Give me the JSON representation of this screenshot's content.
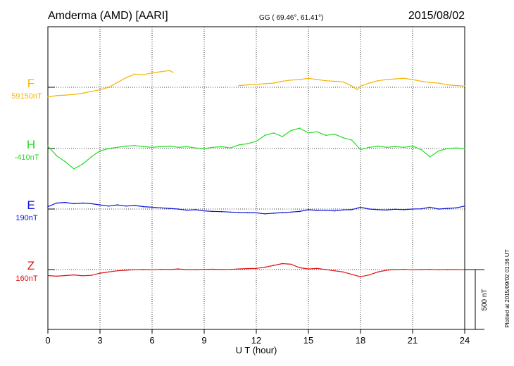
{
  "header": {
    "station": "Amderma (AMD)  [AARI]",
    "coords": "GG ( 69.46°,  61.41°)",
    "date": "2015/08/02"
  },
  "side_note": "Plotted at 2015/09/02 01:36 UT",
  "scale_bar": {
    "label": "500 nT",
    "value_nT": 500
  },
  "chart_data": {
    "type": "line",
    "title": "",
    "xlabel": "U T (hour)",
    "ylabel": "",
    "xlim": [
      0,
      24
    ],
    "xticks": [
      0,
      3,
      6,
      9,
      12,
      15,
      18,
      21,
      24
    ],
    "grid": true,
    "y_unit": "nT",
    "series": [
      {
        "name": "F",
        "baseline_label": "59150nT",
        "baseline_nT": 59150,
        "color": "#f5b400",
        "x": [
          0,
          0.5,
          1,
          1.5,
          2,
          2.5,
          3,
          3.5,
          4,
          4.5,
          5,
          5.5,
          6,
          6.5,
          7,
          7.2,
          null,
          11,
          11.5,
          12,
          12.5,
          13,
          13.5,
          14,
          14.5,
          15,
          15.5,
          16,
          16.5,
          17,
          17.5,
          17.8,
          18,
          18.5,
          19,
          19.5,
          20,
          20.5,
          21,
          21.5,
          22,
          22.5,
          23,
          23.5,
          24
        ],
        "y": [
          59070,
          59080,
          59085,
          59090,
          59100,
          59115,
          59130,
          59150,
          59190,
          59230,
          59260,
          59255,
          59270,
          59280,
          59290,
          59275,
          null,
          59165,
          59170,
          59175,
          59180,
          59185,
          59200,
          59210,
          59215,
          59225,
          59215,
          59205,
          59200,
          59195,
          59160,
          59130,
          59160,
          59185,
          59205,
          59215,
          59220,
          59225,
          59215,
          59200,
          59190,
          59185,
          59170,
          59165,
          59160
        ]
      },
      {
        "name": "H",
        "baseline_label": "-410nT",
        "baseline_nT": -410,
        "color": "#22dd22",
        "x": [
          0,
          0.5,
          1,
          1.5,
          2,
          2.5,
          3,
          3.5,
          4,
          4.5,
          5,
          5.5,
          6,
          6.5,
          7,
          7.5,
          8,
          8.5,
          9,
          9.5,
          10,
          10.5,
          11,
          11.5,
          12,
          12.5,
          13,
          13.5,
          14,
          14.5,
          15,
          15.5,
          16,
          16.5,
          17,
          17.5,
          18,
          18.5,
          19,
          19.5,
          20,
          20.5,
          21,
          21.5,
          22,
          22.5,
          23,
          23.5,
          24
        ],
        "y": [
          -390,
          -470,
          -520,
          -580,
          -540,
          -480,
          -430,
          -410,
          -400,
          -390,
          -385,
          -395,
          -400,
          -395,
          -390,
          -400,
          -395,
          -405,
          -410,
          -400,
          -395,
          -405,
          -380,
          -370,
          -350,
          -300,
          -280,
          -310,
          -260,
          -240,
          -280,
          -270,
          -300,
          -290,
          -320,
          -340,
          -420,
          -400,
          -390,
          -400,
          -395,
          -400,
          -390,
          -420,
          -480,
          -430,
          -410,
          -405,
          -410
        ]
      },
      {
        "name": "E",
        "baseline_label": "190nT",
        "baseline_nT": 190,
        "color": "#0a14d8",
        "x": [
          0,
          0.5,
          1,
          1.5,
          2,
          2.5,
          3,
          3.5,
          4,
          4.5,
          5,
          5.5,
          6,
          6.5,
          7,
          7.5,
          8,
          8.5,
          9,
          9.5,
          10,
          10.5,
          11,
          11.5,
          12,
          12.5,
          13,
          13.5,
          14,
          14.5,
          15,
          15.5,
          16,
          16.5,
          17,
          17.5,
          18,
          18.5,
          19,
          19.5,
          20,
          20.5,
          21,
          21.5,
          22,
          22.5,
          23,
          23.5,
          24
        ],
        "y": [
          210,
          240,
          245,
          235,
          240,
          235,
          225,
          215,
          225,
          215,
          220,
          210,
          205,
          200,
          195,
          190,
          180,
          185,
          175,
          170,
          168,
          165,
          162,
          160,
          158,
          150,
          155,
          160,
          165,
          170,
          185,
          178,
          180,
          175,
          183,
          185,
          205,
          190,
          185,
          182,
          188,
          185,
          190,
          192,
          205,
          190,
          195,
          200,
          215
        ]
      },
      {
        "name": "Z",
        "baseline_label": "160nT",
        "baseline_nT": 160,
        "color": "#e01010",
        "x": [
          0,
          0.5,
          1,
          1.5,
          2,
          2.5,
          3,
          3.5,
          4,
          4.5,
          5,
          5.5,
          6,
          6.5,
          7,
          7.5,
          8,
          8.5,
          9,
          9.5,
          10,
          10.5,
          11,
          11.5,
          12,
          12.5,
          13,
          13.5,
          14,
          14.5,
          15,
          15.5,
          16,
          16.5,
          17,
          17.5,
          18,
          18.5,
          19,
          19.5,
          20,
          20.5,
          21,
          21.5,
          22,
          22.5,
          23,
          23.5,
          24
        ],
        "y": [
          110,
          105,
          110,
          115,
          108,
          112,
          130,
          140,
          150,
          155,
          158,
          160,
          158,
          162,
          160,
          165,
          160,
          160,
          162,
          163,
          160,
          162,
          165,
          168,
          170,
          180,
          195,
          210,
          205,
          175,
          165,
          170,
          160,
          150,
          140,
          120,
          100,
          115,
          140,
          155,
          160,
          162,
          158,
          160,
          162,
          158,
          160,
          160,
          158
        ]
      }
    ]
  }
}
